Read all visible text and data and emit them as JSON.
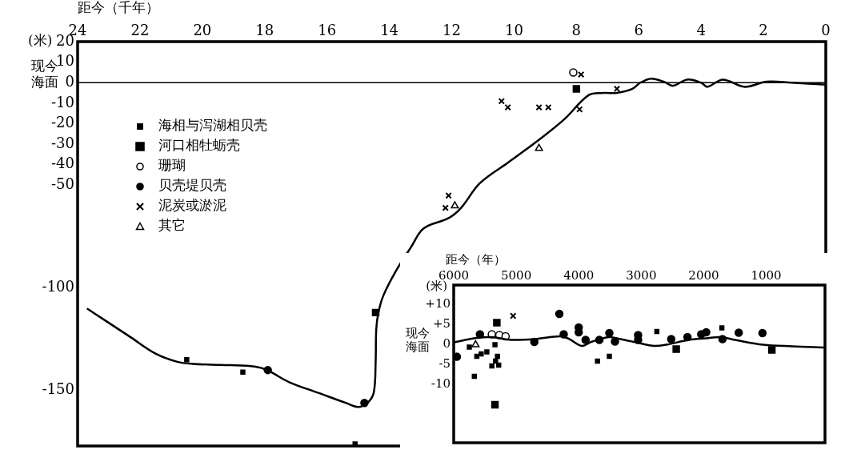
{
  "chart_data": [
    {
      "type": "scatter",
      "xlabel": "距今（千年）",
      "ylabel": "(米)",
      "xlim": [
        24,
        0
      ],
      "xticks": [
        24,
        22,
        20,
        18,
        16,
        14,
        12,
        10,
        8,
        6,
        4,
        2,
        0
      ],
      "ylim": [
        -177,
        20
      ],
      "yticks": [
        20,
        10,
        0,
        -10,
        -20,
        -30,
        -40,
        -50,
        -100,
        -150
      ],
      "legend": "top left",
      "ref_lines": [
        {
          "axis": "y",
          "value": 0,
          "label": "现今海面",
          "color": "#000000"
        }
      ],
      "series": [
        {
          "type": "line",
          "color": "#000000",
          "marker": "none",
          "x": [
            23.7,
            23.1,
            22.3,
            21.5,
            20.8,
            20.3,
            19.4,
            18.5,
            18.1,
            17.8,
            17.2,
            16.3,
            15.4,
            15.0,
            14.7,
            14.5,
            14.44,
            14.42,
            14.35,
            14.2,
            13.8,
            13.3,
            12.9,
            12.1,
            11.7,
            11.1,
            10.2,
            9.3,
            8.4,
            7.6,
            7.1,
            6.7,
            6.2,
            5.95,
            5.6,
            5.2,
            4.9,
            4.45,
            4.0,
            3.8,
            3.3,
            2.6,
            1.9,
            1.1,
            0
          ],
          "values": [
            -110,
            -116,
            -124,
            -132,
            -136,
            -137,
            -137.5,
            -138,
            -139,
            -141,
            -146,
            -151,
            -156,
            -158,
            -156,
            -151,
            -136,
            -120,
            -112,
            -104,
            -92,
            -80,
            -71,
            -66,
            -61,
            -49,
            -39,
            -29,
            -18,
            -6,
            -5,
            -5,
            -3,
            0,
            2,
            0.5,
            -1.5,
            1.5,
            0,
            -2,
            1.5,
            -2,
            0.5,
            0,
            -1
          ]
        },
        {
          "name": "海相与泻湖相贝壳",
          "color": "#000000",
          "marker": "square",
          "x": [
            20.5,
            18.7,
            15.1
          ],
          "values": [
            -135,
            -141,
            -176
          ]
        },
        {
          "name": "河口相牡蛎壳",
          "color": "#000000",
          "marker": "square",
          "x": [
            14.44,
            8.0
          ],
          "values": [
            -112,
            -3
          ]
        },
        {
          "name": "珊瑚",
          "color": "#ffffff",
          "marker": "circle",
          "x": [
            8.1
          ],
          "values": [
            5
          ]
        },
        {
          "name": "贝壳堤贝壳",
          "color": "#000000",
          "marker": "circle",
          "x": [
            17.9,
            14.8
          ],
          "values": [
            -140,
            -156
          ]
        },
        {
          "name": "泥炭或淤泥",
          "color": "#000000",
          "marker": "cross",
          "x": [
            7.85,
            10.4,
            10.2,
            9.2,
            8.9,
            7.9,
            6.7,
            12.1,
            12.2
          ],
          "values": [
            4,
            -9,
            -12,
            -12,
            -12,
            -13,
            -3,
            -55,
            -61
          ]
        },
        {
          "name": "其它",
          "color": "#ffffff",
          "marker": "triangle",
          "x": [
            9.2,
            11.9
          ],
          "values": [
            -32,
            -60
          ]
        }
      ]
    },
    {
      "type": "scatter",
      "xlabel": "距今（年）",
      "ylabel": "(米)",
      "xlim": [
        6000,
        60
      ],
      "xticks": [
        6000,
        5000,
        4000,
        3000,
        2000,
        1000
      ],
      "ylim": [
        -24.6,
        14.8
      ],
      "yticks": [
        {
          "value": 10,
          "label": "+10"
        },
        {
          "value": 5,
          "label": "+5"
        },
        0,
        -5,
        -10
      ],
      "annotations": [
        "现今海面"
      ],
      "series": [
        {
          "type": "line",
          "color": "#000000",
          "marker": "none",
          "x": [
            6000,
            5625,
            5400,
            5075,
            4700,
            4300,
            4160,
            3950,
            3800,
            3520,
            3330,
            3060,
            2790,
            2600,
            2240,
            1960,
            1730,
            1500,
            1050,
            590,
            60
          ],
          "values": [
            0.5,
            1.6,
            1.8,
            1.1,
            1.3,
            2.0,
            1.4,
            -0.4,
            0.6,
            1.8,
            1.3,
            0.4,
            -0.4,
            -0.1,
            1.1,
            1.5,
            1.8,
            1.1,
            -0.1,
            -0.5,
            -0.8
          ]
        },
        {
          "color": "#000000",
          "marker": "square",
          "x": [
            5750,
            5670,
            5630,
            5560,
            5470,
            5340,
            5300,
            5330,
            5390,
            5280,
            3700,
            3510,
            2750,
            1710
          ],
          "values": [
            -0.7,
            -8,
            -3,
            -2.4,
            -1.9,
            -0.1,
            -3,
            -4.2,
            -5.4,
            -5.2,
            -4.2,
            -3,
            3.2,
            4.1
          ]
        },
        {
          "color": "#000000",
          "marker": "square",
          "x": [
            5310,
            5340,
            2440,
            910
          ],
          "values": [
            5.4,
            -15.1,
            -1.2,
            -1.4
          ]
        },
        {
          "color": "#ffffff",
          "marker": "circle",
          "x": [
            5390,
            5270,
            5170
          ],
          "values": [
            2.5,
            2.3,
            2.0
          ]
        },
        {
          "color": "#000000",
          "marker": "circle",
          "x": [
            5950,
            5580,
            4710,
            4310,
            4240,
            4000,
            4000,
            3890,
            3670,
            3510,
            3420,
            3050,
            3050,
            2520,
            2260,
            2040,
            1960,
            1700,
            1440,
            1060
          ],
          "values": [
            -3.1,
            2.5,
            0.6,
            7.6,
            2.5,
            4.2,
            3.0,
            1.1,
            1.1,
            2.8,
            0.7,
            2.3,
            1.1,
            1.3,
            1.8,
            2.5,
            3.0,
            1.3,
            2.9,
            2.8
          ]
        },
        {
          "color": "#000000",
          "marker": "cross",
          "x": [
            5050
          ],
          "values": [
            7.1
          ]
        },
        {
          "color": "#ffffff",
          "marker": "triangle",
          "x": [
            5650
          ],
          "values": [
            -0.1
          ]
        }
      ]
    }
  ]
}
